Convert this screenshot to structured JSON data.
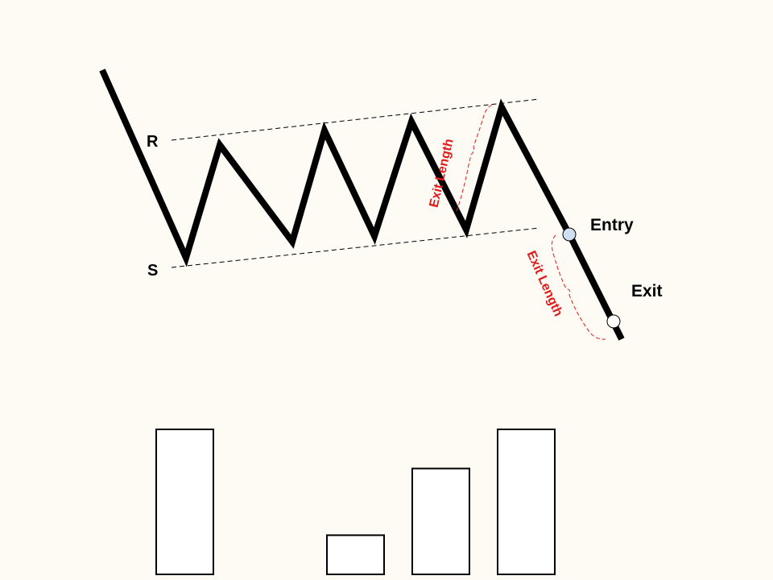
{
  "labels": {
    "resistance": "R",
    "support": "S",
    "entry": "Entry",
    "exit": "Exit",
    "exit_length_1": "Exit Length",
    "exit_length_2": "Exit Length"
  },
  "colors": {
    "background": "#fdfbf4",
    "price_line": "#000000",
    "annotation": "#e01b1b",
    "entry_marker": "#cfe0f0",
    "exit_marker": "#ffffff"
  },
  "volume_bars": {
    "count": 5,
    "relative_heights": [
      1.0,
      0.0,
      0.27,
      0.73,
      1.0
    ]
  }
}
